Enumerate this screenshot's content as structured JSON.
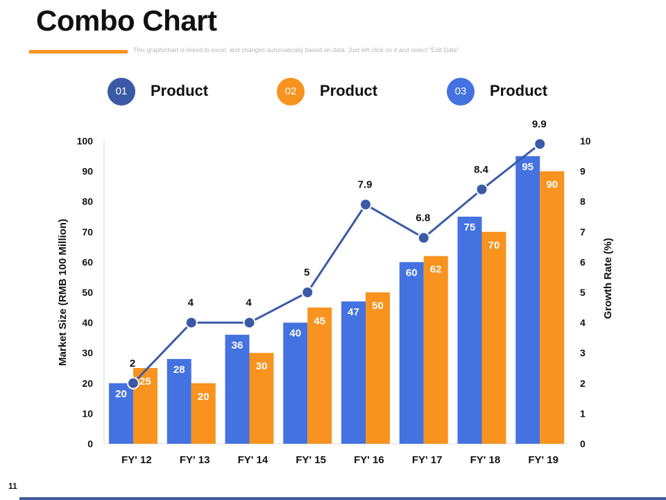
{
  "page": {
    "title": "Combo Chart",
    "subtitle": "This graph/chart is linked to excel, and changes automatically based on data. Just left click on it and select \"Edit Data\".",
    "page_number": "11"
  },
  "legend": [
    {
      "number": "01",
      "label": "Product",
      "color": "#3b5aa6"
    },
    {
      "number": "02",
      "label": "Product",
      "color": "#f7931e"
    },
    {
      "number": "03",
      "label": "Product",
      "color": "#4472e0"
    }
  ],
  "colors": {
    "blue_bar": "#4472e0",
    "orange_bar": "#f7931e",
    "line": "#3b5aa6",
    "accent_orange": "#f7931e",
    "footer": "#3e5a9a"
  },
  "chart_data": {
    "type": "bar",
    "categories": [
      "FY' 12",
      "FY' 13",
      "FY' 14",
      "FY' 15",
      "FY' 16",
      "FY' 17",
      "FY' 18",
      "FY' 19"
    ],
    "series": [
      {
        "type": "bar",
        "axis": "left",
        "color": "#4472e0",
        "values": [
          20,
          28,
          36,
          40,
          47,
          60,
          75,
          95
        ]
      },
      {
        "type": "bar",
        "axis": "left",
        "color": "#f7931e",
        "values": [
          25,
          20,
          30,
          45,
          50,
          62,
          70,
          90
        ]
      },
      {
        "type": "line",
        "axis": "right",
        "color": "#3b5aa6",
        "values": [
          2,
          4,
          4,
          5,
          7.9,
          6.8,
          8.4,
          9.9
        ]
      }
    ],
    "ylabel": "Market Size (RMB 100 Million)",
    "y2label": "Growth Rate (%)",
    "ylim": [
      0,
      100
    ],
    "y2lim": [
      0,
      10
    ],
    "yticks": [
      0,
      10,
      20,
      30,
      40,
      50,
      60,
      70,
      80,
      90,
      100
    ],
    "y2ticks": [
      0,
      1,
      2,
      3,
      4,
      5,
      6,
      7,
      8,
      9,
      10
    ],
    "grid": false,
    "legend_position": "top"
  }
}
